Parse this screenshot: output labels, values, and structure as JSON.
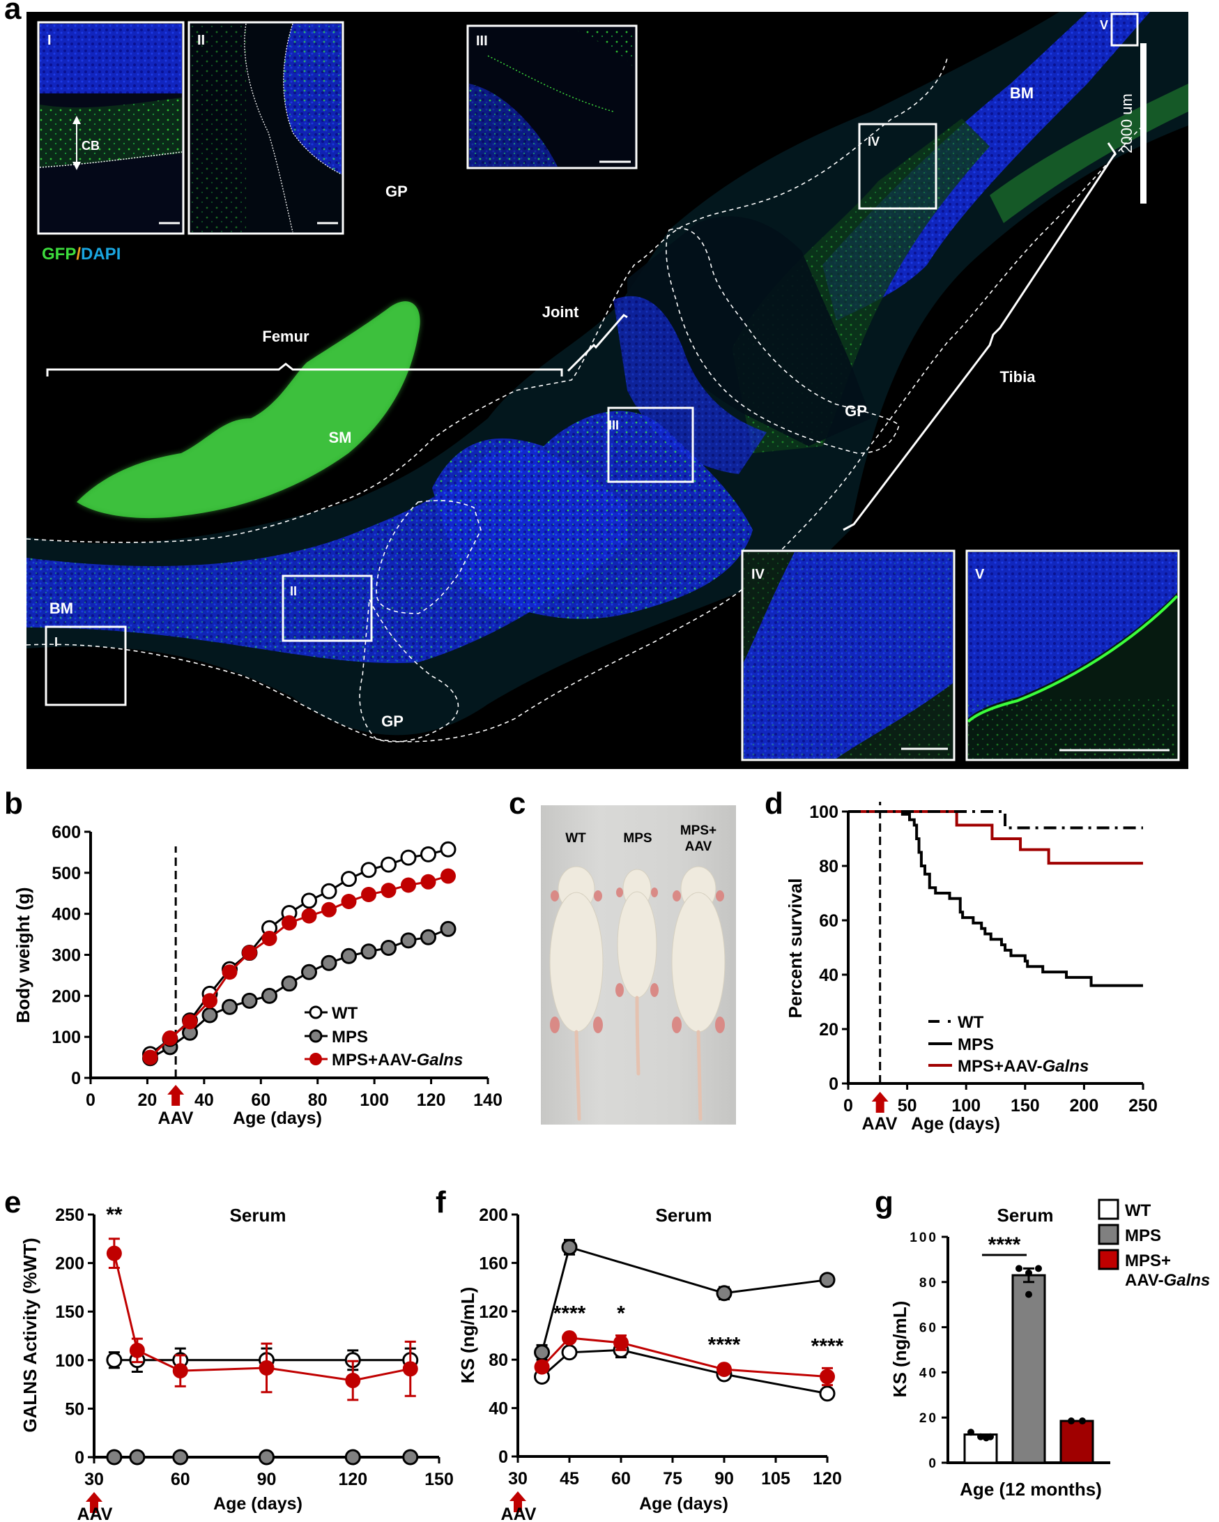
{
  "panel_labels": {
    "a": "a",
    "b": "b",
    "c": "c",
    "d": "d",
    "e": "e",
    "f": "f",
    "g": "g"
  },
  "panel_a": {
    "stain_label_gfp": "GFP",
    "stain_label_sep": "/",
    "stain_label_dapi": "DAPI",
    "colors": {
      "gfp": "#3ddc3d",
      "dapi": "#1aa6e0",
      "sep": "#f0a020"
    },
    "insets": [
      {
        "id": "I",
        "label": "I",
        "annotation": "CB"
      },
      {
        "id": "II",
        "label": "II",
        "annotation": "GP"
      },
      {
        "id": "III",
        "label": "III"
      },
      {
        "id": "IV",
        "label": "IV"
      },
      {
        "id": "V",
        "label": "V"
      }
    ],
    "region_labels": {
      "femur": "Femur",
      "joint": "Joint",
      "tibia": "Tibia",
      "sm": "SM",
      "bm_left": "BM",
      "bm_right": "BM",
      "gp_bottom": "GP",
      "gp_right": "GP"
    },
    "box_labels": {
      "I": "I",
      "II": "II",
      "III": "III",
      "IV": "IV",
      "V": "V"
    },
    "scale_bar_label": "2000 um"
  },
  "panel_c": {
    "labels": [
      "WT",
      "MPS",
      "MPS+",
      "AAV"
    ]
  },
  "chart_data": [
    {
      "panel": "b",
      "type": "line",
      "title": "",
      "xlabel": "Age (days)",
      "ylabel": "Body weight (g)",
      "xlim": [
        0,
        140
      ],
      "ylim": [
        0,
        600
      ],
      "xticks": [
        0,
        20,
        40,
        60,
        80,
        100,
        120,
        140
      ],
      "yticks": [
        0,
        100,
        200,
        300,
        400,
        500,
        600
      ],
      "annotation": {
        "text": "AAV",
        "x": 30,
        "dashed_line": true
      },
      "legend": [
        "WT",
        "MPS",
        "MPS+AAV-Galns"
      ],
      "x": [
        21,
        28,
        35,
        42,
        49,
        56,
        63,
        70,
        77,
        84,
        91,
        98,
        105,
        112,
        119,
        126
      ],
      "series": [
        {
          "name": "WT",
          "marker": "open-circle",
          "color": "#000000",
          "values": [
            58,
            95,
            140,
            205,
            265,
            305,
            365,
            402,
            432,
            455,
            485,
            507,
            520,
            537,
            545,
            557
          ]
        },
        {
          "name": "MPS",
          "marker": "gray-circle",
          "color": "#000000",
          "values": [
            48,
            75,
            110,
            153,
            173,
            188,
            200,
            230,
            258,
            280,
            297,
            308,
            317,
            335,
            343,
            363
          ]
        },
        {
          "name": "MPS+AAV-Galns",
          "marker": "red-circle",
          "color": "#c00000",
          "values": [
            50,
            97,
            137,
            188,
            258,
            305,
            340,
            378,
            395,
            410,
            430,
            447,
            457,
            470,
            478,
            492
          ]
        }
      ]
    },
    {
      "panel": "d",
      "type": "line",
      "subtype": "kaplan-meier",
      "xlabel": "Age (days)",
      "ylabel": "Percent survival",
      "xlim": [
        0,
        250
      ],
      "ylim": [
        0,
        100
      ],
      "xticks": [
        0,
        50,
        100,
        150,
        200,
        250
      ],
      "yticks": [
        0,
        20,
        40,
        60,
        80,
        100
      ],
      "annotation": {
        "text": "AAV",
        "x": 27,
        "dashed_line": true
      },
      "legend": [
        "WT",
        "MPS",
        "MPS+AAV-Galns"
      ],
      "series": [
        {
          "name": "WT",
          "style": "dash-dot",
          "color": "#000000",
          "steps": [
            [
              0,
              100
            ],
            [
              133,
              100
            ],
            [
              133,
              94
            ],
            [
              250,
              94
            ]
          ]
        },
        {
          "name": "MPS",
          "style": "solid",
          "color": "#000000",
          "steps": [
            [
              0,
              100
            ],
            [
              46,
              100
            ],
            [
              46,
              99
            ],
            [
              52,
              99
            ],
            [
              52,
              97
            ],
            [
              56,
              97
            ],
            [
              56,
              95
            ],
            [
              58,
              95
            ],
            [
              58,
              90
            ],
            [
              60,
              90
            ],
            [
              60,
              85
            ],
            [
              62,
              85
            ],
            [
              62,
              80
            ],
            [
              65,
              80
            ],
            [
              65,
              77
            ],
            [
              69,
              77
            ],
            [
              69,
              72
            ],
            [
              74,
              72
            ],
            [
              74,
              70
            ],
            [
              86,
              70
            ],
            [
              86,
              68
            ],
            [
              95,
              68
            ],
            [
              95,
              63
            ],
            [
              97,
              63
            ],
            [
              97,
              61
            ],
            [
              106,
              61
            ],
            [
              106,
              59
            ],
            [
              113,
              59
            ],
            [
              113,
              57
            ],
            [
              116,
              57
            ],
            [
              116,
              55
            ],
            [
              121,
              55
            ],
            [
              121,
              53
            ],
            [
              130,
              53
            ],
            [
              130,
              51
            ],
            [
              133,
              51
            ],
            [
              133,
              49
            ],
            [
              138,
              49
            ],
            [
              138,
              47
            ],
            [
              150,
              47
            ],
            [
              150,
              45
            ],
            [
              152,
              45
            ],
            [
              152,
              43
            ],
            [
              165,
              43
            ],
            [
              165,
              41
            ],
            [
              185,
              41
            ],
            [
              185,
              39
            ],
            [
              206,
              39
            ],
            [
              206,
              36
            ],
            [
              250,
              36
            ]
          ]
        },
        {
          "name": "MPS+AAV-Galns",
          "style": "solid",
          "color": "#a00000",
          "steps": [
            [
              0,
              100
            ],
            [
              92,
              100
            ],
            [
              92,
              95
            ],
            [
              122,
              95
            ],
            [
              122,
              90
            ],
            [
              146,
              90
            ],
            [
              146,
              86
            ],
            [
              170,
              86
            ],
            [
              170,
              81
            ],
            [
              250,
              81
            ]
          ]
        }
      ]
    },
    {
      "panel": "e",
      "type": "line",
      "title": "Serum",
      "xlabel": "Age (days)",
      "ylabel": "GALNS Activity (%WT)",
      "xlim": [
        30,
        150
      ],
      "ylim": [
        0,
        250
      ],
      "xticks": [
        30,
        60,
        90,
        120,
        150
      ],
      "yticks": [
        0,
        50,
        100,
        150,
        200,
        250
      ],
      "annotation": {
        "text": "AAV",
        "x": 30
      },
      "significance": [
        {
          "x": 37,
          "text": "**"
        }
      ],
      "x": [
        37,
        45,
        60,
        90,
        120,
        140
      ],
      "series": [
        {
          "name": "WT",
          "marker": "open-circle",
          "color": "#000000",
          "values": [
            100,
            100,
            100,
            100,
            100,
            100
          ],
          "err": [
            8,
            12,
            12,
            12,
            10,
            12
          ]
        },
        {
          "name": "MPS",
          "marker": "gray-circle",
          "color": "#000000",
          "values": [
            0,
            0,
            0,
            0,
            0,
            0
          ],
          "err": [
            0,
            0,
            0,
            0,
            0,
            0
          ]
        },
        {
          "name": "MPS+AAV-Galns",
          "marker": "red-circle",
          "color": "#c00000",
          "values": [
            210,
            110,
            89,
            92,
            79,
            91
          ],
          "err": [
            15,
            12,
            16,
            25,
            20,
            28
          ]
        }
      ]
    },
    {
      "panel": "f",
      "type": "line",
      "title": "Serum",
      "xlabel": "Age (days)",
      "ylabel": "KS (ng/mL)",
      "xlim": [
        30,
        120
      ],
      "ylim": [
        0,
        200
      ],
      "xticks": [
        30,
        45,
        60,
        75,
        90,
        105,
        120
      ],
      "yticks": [
        0,
        40,
        80,
        120,
        160,
        200
      ],
      "annotation": {
        "text": "AAV",
        "x": 30
      },
      "significance": [
        {
          "x": 45,
          "text": "****"
        },
        {
          "x": 60,
          "text": "*"
        },
        {
          "x": 90,
          "text": "****"
        },
        {
          "x": 120,
          "text": "****"
        }
      ],
      "x": [
        37,
        45,
        60,
        90,
        120
      ],
      "series": [
        {
          "name": "WT",
          "marker": "open-circle",
          "color": "#000000",
          "values": [
            66,
            86,
            88,
            68,
            52
          ],
          "err": [
            2,
            2,
            6,
            2,
            2
          ]
        },
        {
          "name": "MPS",
          "marker": "gray-circle",
          "color": "#000000",
          "values": [
            86,
            173,
            null,
            135,
            146
          ],
          "err": [
            6,
            6,
            0,
            5,
            3
          ]
        },
        {
          "name": "MPS+AAV-Galns",
          "marker": "red-circle",
          "color": "#c00000",
          "values": [
            74,
            98,
            94,
            72,
            66
          ],
          "err": [
            4,
            2,
            6,
            2,
            7
          ]
        }
      ]
    },
    {
      "panel": "g",
      "type": "bar",
      "title": "Serum",
      "xlabel": "Age (12 months)",
      "ylabel": "KS (ng/mL)",
      "ylim": [
        0,
        100
      ],
      "yticks": [
        0,
        20,
        40,
        60,
        80,
        100
      ],
      "categories": [
        "WT",
        "MPS",
        "MPS+AAV-Galns"
      ],
      "values": [
        12.5,
        83,
        18.5
      ],
      "err": [
        0.5,
        3,
        0.3
      ],
      "colors": [
        "#ffffff",
        "#808080",
        "#a00000"
      ],
      "points": [
        [
          13.5,
          11.5,
          11,
          11.5
        ],
        [
          86,
          86,
          84,
          74.5
        ],
        [
          18.5,
          18.5
        ]
      ],
      "significance": [
        {
          "from": "WT",
          "to": "MPS",
          "text": "****"
        }
      ],
      "legend": [
        "WT",
        "MPS",
        "MPS+",
        "AAV-Galns"
      ]
    }
  ],
  "text": {
    "b_ylabel": "Body weight (g)",
    "b_xlabel": "Age (days)",
    "b_aav": "AAV",
    "b_leg_wt": "WT",
    "b_leg_mps": "MPS",
    "b_leg_aav_prefix": "MPS+AAV-",
    "b_leg_aav_gene": "Galns",
    "d_ylabel": "Percent survival",
    "d_xlabel": "Age (days)",
    "d_aav": "AAV",
    "e_ylabel": "GALNS Activity (%WT)",
    "e_xlabel": "Age (days)",
    "e_title": "Serum",
    "e_aav": "AAV",
    "f_ylabel": "KS (ng/mL)",
    "f_xlabel": "Age (days)",
    "f_title": "Serum",
    "f_aav": "AAV",
    "g_ylabel": "KS (ng/mL)",
    "g_xlabel": "Age (12 months)",
    "g_title": "Serum",
    "g_leg_wt": "WT",
    "g_leg_mps": "MPS",
    "g_leg_aav1": "MPS+",
    "g_leg_aav2_prefix": "AAV-",
    "g_leg_aav2_gene": "Galns"
  }
}
